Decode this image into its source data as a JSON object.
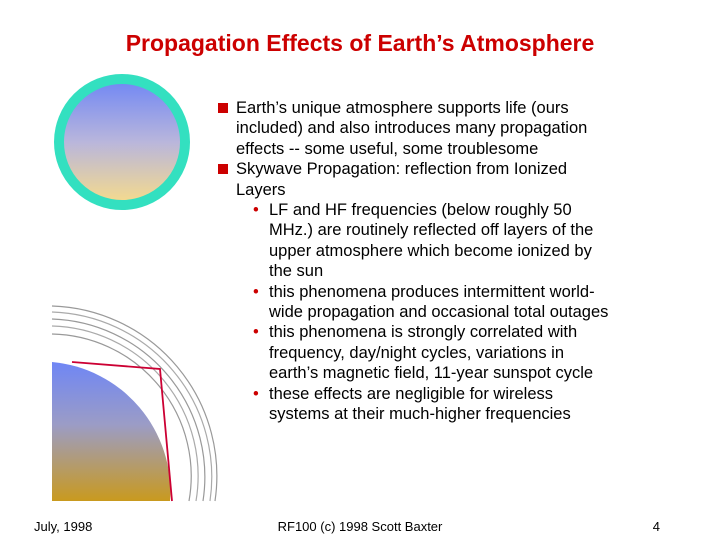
{
  "slide": {
    "title": "Propagation Effects of Earth’s Atmosphere",
    "bullets": [
      {
        "lines": [
          "Earth’s unique atmosphere supports life (ours",
          "included) and also introduces many propagation",
          "effects -- some useful, some troublesome"
        ]
      },
      {
        "lines": [
          "Skywave Propagation:  reflection from Ionized",
          "Layers"
        ],
        "sub_bullets": [
          {
            "lines": [
              "LF and HF frequencies (below roughly 50",
              "MHz.) are routinely reflected off layers of the",
              "upper atmosphere which become ionized by",
              "the sun"
            ]
          },
          {
            "lines": [
              "this phenomena produces intermittent world-",
              "wide propagation and occasional total outages"
            ]
          },
          {
            "lines": [
              "this phenomena is strongly correlated with",
              "frequency, day/night cycles, variations in",
              "earth’s magnetic field, 11-year sunspot cycle"
            ]
          },
          {
            "lines": [
              "these effects are negligible for wireless",
              "systems at their much-higher frequencies"
            ]
          }
        ]
      }
    ],
    "bullet_marker_color": "#cc0000",
    "title_color": "#cc0000",
    "sub_bullet_glyph": "•"
  },
  "illustrations": {
    "globe": {
      "icon": "globe-icon",
      "ring_color": "#33e0c0"
    },
    "earth_cross_section": {
      "icon": "earth-atmosphere-icon",
      "ray_color": "#cc0033"
    }
  },
  "footer": {
    "date": "July, 1998",
    "course": "RF100 (c) 1998 Scott Baxter",
    "page_number": "4"
  }
}
